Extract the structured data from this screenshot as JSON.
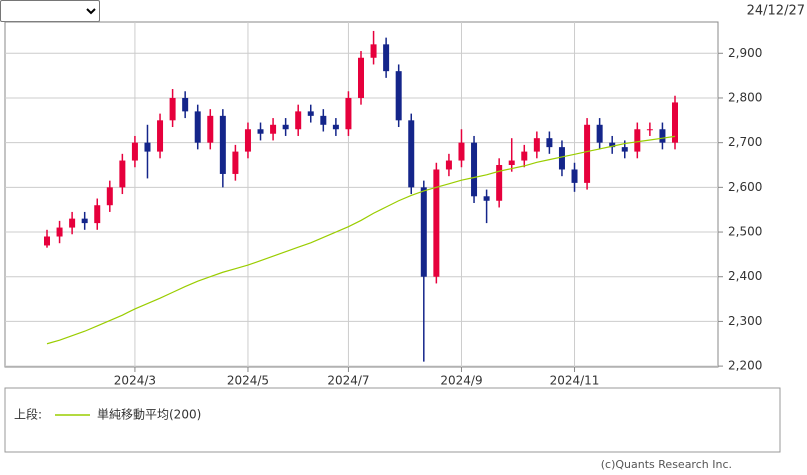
{
  "date": "24/12/27",
  "legend_prefix": "上段:",
  "credit": "(c)Quants Research Inc.",
  "chart_data": {
    "type": "candlestick",
    "categories": [
      null,
      null,
      null,
      null,
      null,
      null,
      null,
      "2024/3",
      null,
      null,
      null,
      null,
      null,
      null,
      null,
      null,
      "2024/5",
      null,
      null,
      null,
      null,
      null,
      null,
      null,
      "2024/7",
      null,
      null,
      null,
      null,
      null,
      null,
      null,
      null,
      "2024/9",
      null,
      null,
      null,
      null,
      null,
      null,
      null,
      null,
      "2024/11",
      null,
      null,
      null,
      null,
      null,
      null,
      null,
      null
    ],
    "open": [
      2470,
      2490,
      2510,
      2530,
      2520,
      2560,
      2600,
      2660,
      2700,
      2680,
      2750,
      2800,
      2770,
      2700,
      2760,
      2630,
      2680,
      2730,
      2720,
      2740,
      2730,
      2770,
      2760,
      2740,
      2730,
      2800,
      2890,
      2920,
      2860,
      2750,
      2600,
      2400,
      2640,
      2660,
      2700,
      2580,
      2570,
      2650,
      2660,
      2680,
      2710,
      2690,
      2640,
      2610,
      2740,
      2700,
      2690,
      2680,
      2730,
      2730,
      2700
    ],
    "close": [
      2490,
      2510,
      2530,
      2520,
      2560,
      2600,
      2660,
      2700,
      2680,
      2750,
      2800,
      2770,
      2700,
      2760,
      2630,
      2680,
      2730,
      2720,
      2740,
      2730,
      2770,
      2760,
      2740,
      2730,
      2800,
      2890,
      2920,
      2860,
      2750,
      2600,
      2400,
      2640,
      2660,
      2700,
      2580,
      2570,
      2650,
      2660,
      2680,
      2710,
      2690,
      2640,
      2610,
      2740,
      2700,
      2690,
      2680,
      2730,
      2730,
      2700,
      2790
    ],
    "high": [
      2505,
      2525,
      2545,
      2545,
      2575,
      2615,
      2675,
      2715,
      2740,
      2765,
      2820,
      2815,
      2785,
      2775,
      2775,
      2695,
      2745,
      2745,
      2755,
      2755,
      2785,
      2785,
      2775,
      2755,
      2815,
      2905,
      2950,
      2935,
      2875,
      2765,
      2615,
      2655,
      2675,
      2730,
      2715,
      2595,
      2665,
      2710,
      2695,
      2725,
      2725,
      2705,
      2655,
      2755,
      2755,
      2715,
      2705,
      2745,
      2745,
      2745,
      2805
    ],
    "low": [
      2465,
      2475,
      2495,
      2505,
      2505,
      2545,
      2585,
      2645,
      2620,
      2665,
      2735,
      2755,
      2685,
      2685,
      2600,
      2615,
      2665,
      2705,
      2705,
      2715,
      2715,
      2745,
      2725,
      2715,
      2715,
      2785,
      2875,
      2845,
      2735,
      2585,
      2210,
      2385,
      2625,
      2645,
      2565,
      2520,
      2555,
      2635,
      2645,
      2665,
      2675,
      2625,
      2590,
      2595,
      2685,
      2675,
      2665,
      2665,
      2715,
      2685,
      2685
    ],
    "up_color": "#e6003c",
    "down_color": "#14258a",
    "series": [
      {
        "name": "単純移動平均(200)",
        "color": "#9acd00",
        "values": [
          2250,
          2258,
          2268,
          2278,
          2290,
          2302,
          2314,
          2328,
          2340,
          2352,
          2365,
          2378,
          2390,
          2400,
          2410,
          2418,
          2426,
          2436,
          2446,
          2456,
          2466,
          2476,
          2488,
          2500,
          2512,
          2526,
          2542,
          2556,
          2570,
          2582,
          2592,
          2600,
          2608,
          2616,
          2622,
          2628,
          2636,
          2642,
          2648,
          2656,
          2662,
          2668,
          2674,
          2680,
          2686,
          2692,
          2698,
          2702,
          2706,
          2710,
          2714
        ]
      }
    ],
    "ylim": [
      2198,
      2970
    ],
    "yticks": [
      {
        "value": 2200,
        "label": "2,200"
      },
      {
        "value": 2300,
        "label": "2,300"
      },
      {
        "value": 2400,
        "label": "2,400"
      },
      {
        "value": 2500,
        "label": "2,500"
      },
      {
        "value": 2600,
        "label": "2,600"
      },
      {
        "value": 2700,
        "label": "2,700"
      },
      {
        "value": 2800,
        "label": "2,800"
      },
      {
        "value": 2900,
        "label": "2,900"
      }
    ],
    "grid": true
  }
}
